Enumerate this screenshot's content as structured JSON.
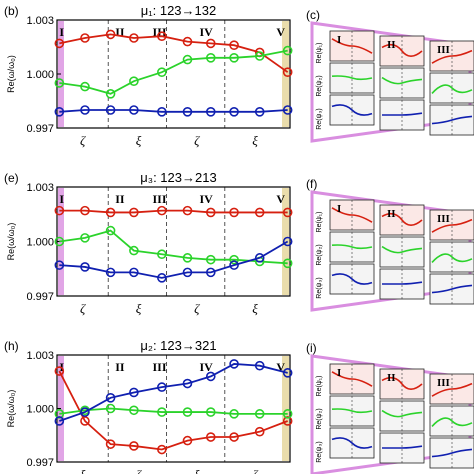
{
  "colors": {
    "red": "#d62010",
    "green": "#2bd32b",
    "blue": "#1020b0",
    "purple": "#d98ee0",
    "gold": "#e8d9a3",
    "grid_dash": "#555555"
  },
  "chart_data": [
    {
      "type": "line",
      "panel_label": "(b)",
      "title": "μ₁: 123→132",
      "ylabel": "Re(ω/ω₀)",
      "ylim": [
        0.997,
        1.003
      ],
      "yticks": [
        "1.003",
        "1.000",
        "0.997"
      ],
      "xticks": [
        "ζ",
        "ξ",
        "ζ",
        "ξ"
      ],
      "regions": [
        "I",
        "II",
        "III",
        "IV",
        "V"
      ],
      "x": [
        0,
        1,
        2,
        3,
        4,
        5,
        6,
        7,
        8,
        9
      ],
      "series": [
        {
          "color": "red",
          "values": [
            1.0017,
            1.002,
            1.0022,
            1.002,
            1.0021,
            1.0018,
            1.0017,
            1.0016,
            1.0012,
            1.0001
          ]
        },
        {
          "color": "green",
          "values": [
            0.9995,
            0.9993,
            0.9989,
            0.9996,
            1.0001,
            1.0008,
            1.0009,
            1.0009,
            1.001,
            1.0013
          ]
        },
        {
          "color": "blue",
          "values": [
            0.9979,
            0.998,
            0.998,
            0.998,
            0.9979,
            0.9979,
            0.9979,
            0.9979,
            0.9979,
            0.998
          ]
        }
      ],
      "highlight": {
        "left": "purple",
        "right": "gold"
      }
    },
    {
      "type": "line",
      "panel_label": "(e)",
      "title": "μ₃: 123→213",
      "ylabel": "Re(ω/ω₀)",
      "ylim": [
        0.997,
        1.003
      ],
      "yticks": [
        "1.003",
        "1.000",
        "0.997"
      ],
      "xticks": [
        "ζ",
        "ξ",
        "ζ",
        "ξ"
      ],
      "regions": [
        "I",
        "II",
        "III",
        "IV",
        "V"
      ],
      "x": [
        0,
        1,
        2,
        3,
        4,
        5,
        6,
        7,
        8,
        9
      ],
      "series": [
        {
          "color": "red",
          "values": [
            1.0017,
            1.0017,
            1.0016,
            1.0016,
            1.0017,
            1.0017,
            1.0016,
            1.0016,
            1.0016,
            1.0016
          ]
        },
        {
          "color": "green",
          "values": [
            1.0,
            1.0002,
            1.0006,
            0.9995,
            0.9993,
            0.9991,
            0.999,
            0.999,
            0.9989,
            0.9988
          ]
        },
        {
          "color": "blue",
          "values": [
            0.9987,
            0.9986,
            0.9983,
            0.9983,
            0.998,
            0.9983,
            0.9983,
            0.9987,
            0.9991,
            1.0
          ]
        }
      ],
      "highlight": {
        "left": "purple",
        "right": "gold"
      }
    },
    {
      "type": "line",
      "panel_label": "(h)",
      "title": "μ₂: 123→321",
      "ylabel": "Re(ω/ω₀)",
      "ylim": [
        0.997,
        1.003
      ],
      "yticks": [
        "1.003",
        "1.000",
        "0.997"
      ],
      "xticks": [
        "ξ",
        "ζ",
        "ξ",
        "ζ"
      ],
      "regions": [
        "I",
        "II",
        "III",
        "IV",
        "V"
      ],
      "x": [
        0,
        1,
        2,
        3,
        4,
        5,
        6,
        7,
        8,
        9
      ],
      "series": [
        {
          "color": "red",
          "values": [
            1.0021,
            0.9993,
            0.998,
            0.9979,
            0.9977,
            0.9982,
            0.9984,
            0.9984,
            0.9987,
            0.9993
          ]
        },
        {
          "color": "green",
          "values": [
            0.9997,
            0.9999,
            1.0,
            0.9999,
            0.9998,
            0.9998,
            0.9998,
            0.9997,
            0.9997,
            0.9997
          ]
        },
        {
          "color": "blue",
          "values": [
            0.9993,
            0.9998,
            1.0006,
            1.0009,
            1.0012,
            1.0014,
            1.0018,
            1.0025,
            1.0024,
            1.002
          ]
        }
      ],
      "highlight": {
        "left": "purple",
        "right": "gold"
      }
    }
  ],
  "side_panels": [
    {
      "label": "(c)",
      "regions": [
        "I",
        "II",
        "III"
      ],
      "ylabels": [
        "Re(ψ₁)",
        "Re(ψ₂)",
        "Re(ψ₃)"
      ]
    },
    {
      "label": "(f)",
      "regions": [
        "I",
        "II",
        "III"
      ],
      "ylabels": [
        "Re(ψ₁)",
        "Re(ψ₂)",
        "Re(ψ₃)"
      ]
    },
    {
      "label": "(i)",
      "regions": [
        "I",
        "II",
        "III"
      ],
      "ylabels": [
        "Re(ψ₁)",
        "Re(ψ₂)",
        "Re(ψ₃)"
      ]
    }
  ]
}
